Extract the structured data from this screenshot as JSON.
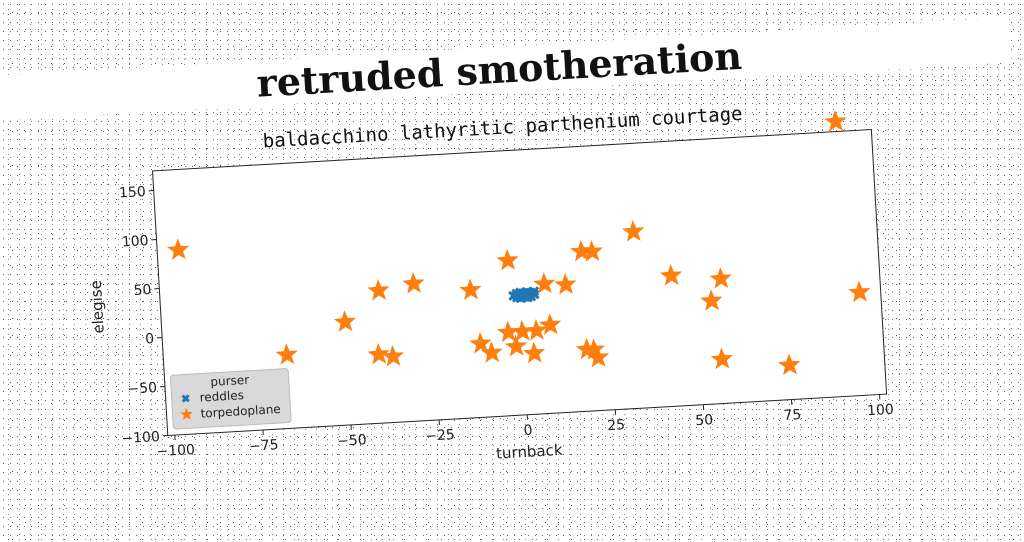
{
  "chart_data": {
    "type": "scatter",
    "title": "retruded smotheration",
    "subtitle": "baldacchino lathyritic parthenium courtage",
    "xlabel": "turnback",
    "ylabel": "elegise",
    "xlim": [
      -102,
      102
    ],
    "ylim": [
      -100,
      170
    ],
    "xticks": [
      -100,
      -75,
      -50,
      -25,
      0,
      25,
      50,
      75,
      100
    ],
    "yticks": [
      -100,
      -50,
      0,
      50,
      100,
      150
    ],
    "legend": {
      "title": "purser",
      "placement": "lower-left"
    },
    "series": [
      {
        "name": "reddles",
        "marker": "x",
        "color": "#1f77b4",
        "points": [
          [
            -1,
            20
          ],
          [
            0,
            22
          ],
          [
            1,
            24
          ],
          [
            2,
            21
          ],
          [
            3,
            23
          ],
          [
            0,
            19
          ],
          [
            -1,
            24
          ],
          [
            1,
            20
          ],
          [
            2,
            25
          ],
          [
            3,
            20
          ],
          [
            4,
            22
          ],
          [
            0,
            25
          ],
          [
            -2,
            22
          ],
          [
            1,
            23
          ],
          [
            2,
            19
          ],
          [
            3,
            24
          ],
          [
            0,
            21
          ],
          [
            4,
            25
          ],
          [
            -1,
            22
          ],
          [
            2,
            22
          ]
        ]
      },
      {
        "name": "torpedoplane",
        "marker": "star",
        "color": "#ff7f0e",
        "points": [
          [
            92,
            180
          ],
          [
            -96,
            88
          ],
          [
            -3,
            58
          ],
          [
            33,
            80
          ],
          [
            18,
            63
          ],
          [
            21,
            62
          ],
          [
            -30,
            40
          ],
          [
            -40,
            35
          ],
          [
            -14,
            30
          ],
          [
            7,
            32
          ],
          [
            13,
            30
          ],
          [
            43,
            33
          ],
          [
            57,
            27
          ],
          [
            -50,
            5
          ],
          [
            54,
            5
          ],
          [
            96,
            5
          ],
          [
            -67,
            -25
          ],
          [
            -41,
            -30
          ],
          [
            -37,
            -33
          ],
          [
            -12,
            -25
          ],
          [
            -9,
            -35
          ],
          [
            -2,
            -30
          ],
          [
            -4,
            -15
          ],
          [
            0,
            -15
          ],
          [
            4,
            -15
          ],
          [
            8,
            -10
          ],
          [
            3,
            -38
          ],
          [
            18,
            -37
          ],
          [
            20,
            -38
          ],
          [
            21,
            -46
          ],
          [
            56,
            -55
          ],
          [
            75,
            -65
          ]
        ]
      }
    ]
  }
}
